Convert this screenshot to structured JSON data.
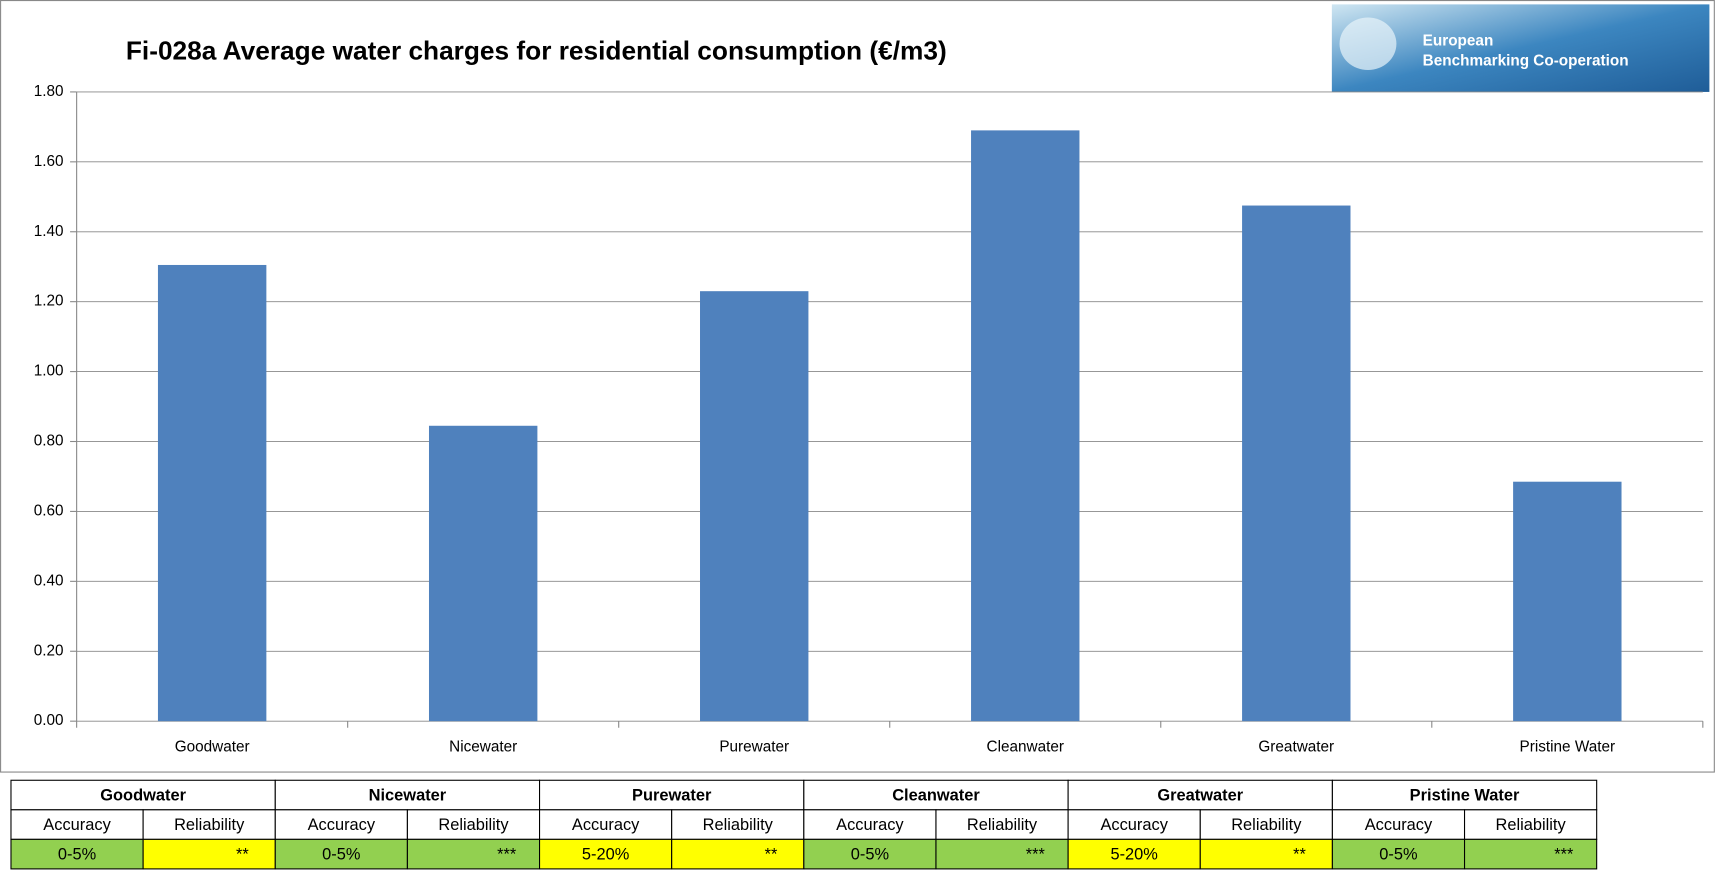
{
  "chart_data": {
    "type": "bar",
    "title": "Fi-028a Average water charges for residential consumption (€/m3)",
    "categories": [
      "Goodwater",
      "Nicewater",
      "Purewater",
      "Cleanwater",
      "Greatwater",
      "Pristine Water"
    ],
    "values": [
      1.305,
      0.845,
      1.23,
      1.69,
      1.475,
      0.685
    ],
    "color": "#4f81bd",
    "ylim": [
      0,
      1.8
    ],
    "yticks": [
      {
        "value": 0,
        "label": "0.00"
      },
      {
        "value": 0.2,
        "label": "0.20"
      },
      {
        "value": 0.4,
        "label": "0.40"
      },
      {
        "value": 0.6,
        "label": "0.60"
      },
      {
        "value": 0.8,
        "label": "0.80"
      },
      {
        "value": 1.0,
        "label": "1.00"
      },
      {
        "value": 1.2,
        "label": "1.20"
      },
      {
        "value": 1.4,
        "label": "1.40"
      },
      {
        "value": 1.6,
        "label": "1.60"
      },
      {
        "value": 1.8,
        "label": "1.80"
      }
    ],
    "grid": true
  },
  "logo": {
    "line1": "European",
    "line2": "Benchmarking Co-operation"
  },
  "table": {
    "groups": [
      {
        "name": "Goodwater",
        "headers": [
          "Accuracy",
          "Reliability"
        ],
        "cells": [
          "0-5%",
          "**"
        ],
        "cell_colors": [
          "#92d050",
          "#ffff00"
        ]
      },
      {
        "name": "Nicewater",
        "headers": [
          "Accuracy",
          "Reliability"
        ],
        "cells": [
          "0-5%",
          "***"
        ],
        "cell_colors": [
          "#92d050",
          "#92d050"
        ]
      },
      {
        "name": "Purewater",
        "headers": [
          "Accuracy",
          "Reliability"
        ],
        "cells": [
          "5-20%",
          "**"
        ],
        "cell_colors": [
          "#ffff00",
          "#ffff00"
        ]
      },
      {
        "name": "Cleanwater",
        "headers": [
          "Accuracy",
          "Reliability"
        ],
        "cells": [
          "0-5%",
          "***"
        ],
        "cell_colors": [
          "#92d050",
          "#92d050"
        ]
      },
      {
        "name": "Greatwater",
        "headers": [
          "Accuracy",
          "Reliability"
        ],
        "cells": [
          "5-20%",
          "**"
        ],
        "cell_colors": [
          "#ffff00",
          "#ffff00"
        ]
      },
      {
        "name": "Pristine Water",
        "headers": [
          "Accuracy",
          "Reliability"
        ],
        "cells": [
          "0-5%",
          "***"
        ],
        "cell_colors": [
          "#92d050",
          "#92d050"
        ]
      }
    ]
  }
}
